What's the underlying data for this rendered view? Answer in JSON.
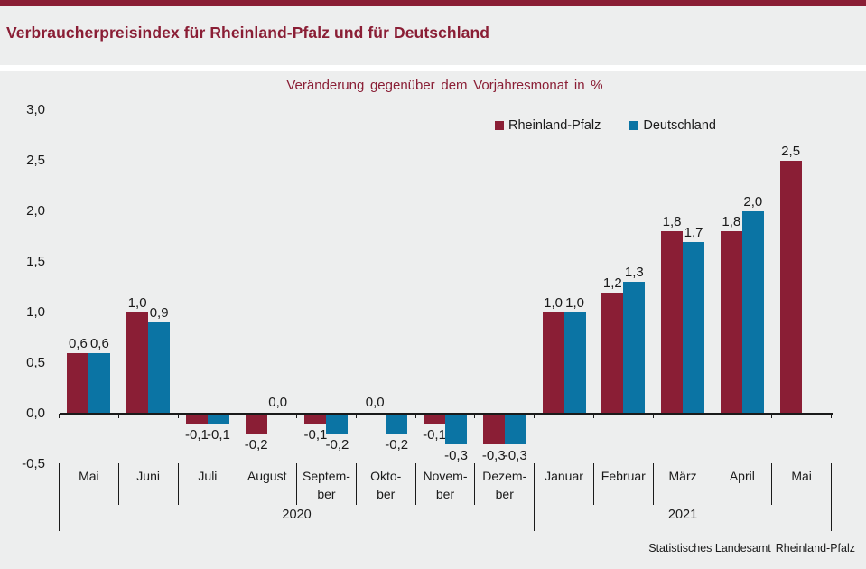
{
  "page": {
    "title": "Verbraucherpreisindex für Rheinland-Pfalz und für Deutschland",
    "footer_org": "Statistisches Landesamt",
    "footer_region": "Rheinland-Pfalz"
  },
  "colors": {
    "accent_red": "#8a1e35",
    "accent_blue": "#0b74a4",
    "background": "#edeeee",
    "separator_band": "#ffffff",
    "text": "#1a1a1a"
  },
  "chart_data": {
    "type": "bar",
    "title": "Veränderung gegenüber dem Vorjahresmonat in %",
    "categories": [
      "Mai",
      "Juni",
      "Juli",
      "August",
      "Septem-\nber",
      "Okto-\nber",
      "Novem-\nber",
      "Dezem-\nber",
      "Januar",
      "Februar",
      "März",
      "April",
      "Mai"
    ],
    "category_groups": [
      {
        "label": "2020",
        "from": 0,
        "to": 7
      },
      {
        "label": "2021",
        "from": 8,
        "to": 12
      }
    ],
    "series": [
      {
        "name": "Rheinland-Pfalz",
        "color": "#8a1e35",
        "values": [
          0.6,
          1.0,
          -0.1,
          -0.2,
          -0.1,
          0.0,
          -0.1,
          -0.3,
          1.0,
          1.2,
          1.8,
          1.8,
          2.5
        ]
      },
      {
        "name": "Deutschland",
        "color": "#0b74a4",
        "values": [
          0.6,
          0.9,
          -0.1,
          0.0,
          -0.2,
          -0.2,
          -0.3,
          -0.3,
          1.0,
          1.3,
          1.7,
          2.0,
          null
        ]
      }
    ],
    "ylim": [
      -0.5,
      3.0
    ],
    "y_ticks": [
      3.0,
      2.5,
      2.0,
      1.5,
      1.0,
      0.5,
      0.0,
      -0.5
    ],
    "decimal_separator": ",",
    "grid": false,
    "legend_position": "top-right",
    "value_labels": true
  }
}
